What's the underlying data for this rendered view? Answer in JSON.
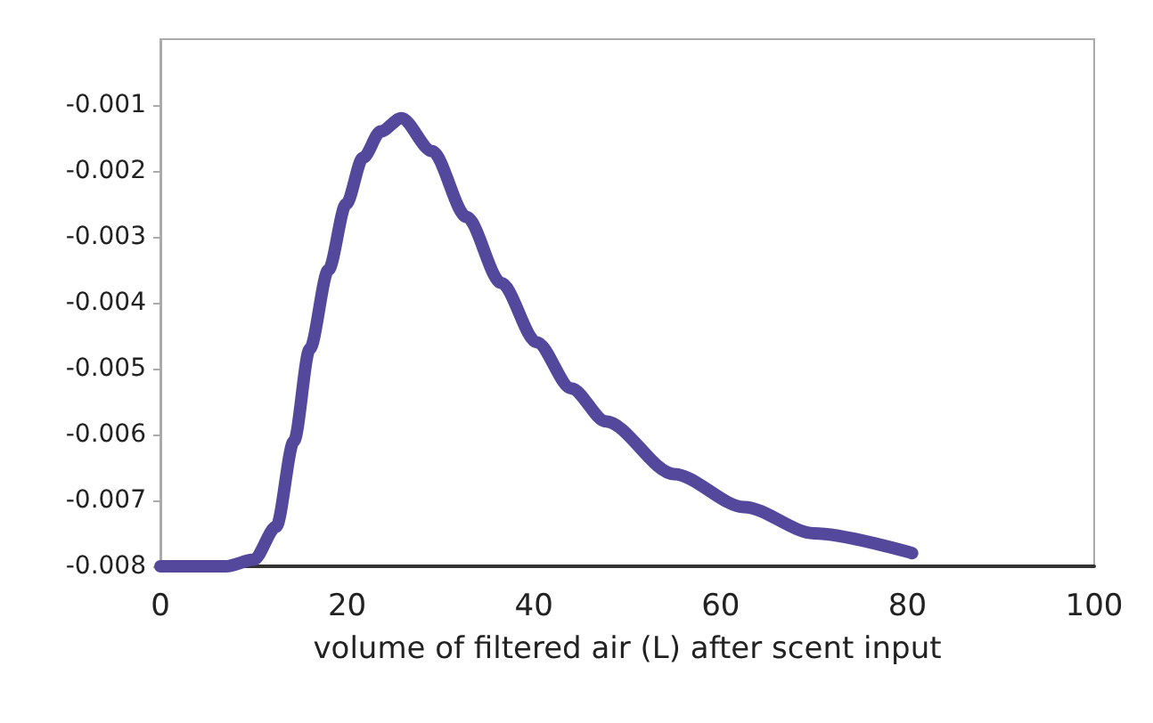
{
  "chart_data": {
    "type": "line",
    "xlabel": "volume of filtered air (L) after scent input",
    "series": [
      {
        "color": "#54489c",
        "x": [
          0,
          4,
          7,
          10,
          12.4,
          14.3,
          16,
          18,
          19.9,
          21.7,
          23.6,
          25.8,
          29.1,
          32.8,
          36.5,
          40.3,
          44,
          47.7,
          55,
          62.5,
          70,
          80.5
        ],
        "values": [
          -0.008,
          -0.008,
          -0.008,
          -0.0079,
          -0.0074,
          -0.0061,
          -0.0047,
          -0.0035,
          -0.0025,
          -0.0018,
          -0.0014,
          -0.0012,
          -0.0017,
          -0.0027,
          -0.0037,
          -0.0046,
          -0.0053,
          -0.0058,
          -0.0066,
          -0.0071,
          -0.0075,
          -0.0078
        ]
      }
    ],
    "xlim": [
      0,
      100
    ],
    "xticks": [
      0,
      20,
      40,
      60,
      80,
      100
    ],
    "ylim": [
      -0.008,
      0
    ],
    "yticks": [
      -0.008,
      -0.007,
      -0.006,
      -0.005,
      -0.004,
      -0.003,
      -0.002,
      -0.001
    ],
    "grid": false,
    "line_style": "solid"
  }
}
